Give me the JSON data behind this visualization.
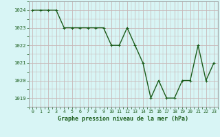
{
  "x": [
    0,
    1,
    2,
    3,
    4,
    5,
    6,
    7,
    8,
    9,
    10,
    11,
    12,
    13,
    14,
    15,
    16,
    17,
    18,
    19,
    20,
    21,
    22,
    23
  ],
  "y": [
    1024,
    1024,
    1024,
    1024,
    1023,
    1023,
    1023,
    1023,
    1023,
    1023,
    1022,
    1022,
    1023,
    1022,
    1021,
    1019,
    1020,
    1019,
    1019,
    1020,
    1020,
    1022,
    1020,
    1021
  ],
  "line_color": "#1a5c1a",
  "marker": "+",
  "marker_size": 3.5,
  "bg_color": "#d8f5f5",
  "grid_minor_color": "#c8b8b8",
  "grid_major_color": "#c8b8b8",
  "xlabel": "Graphe pression niveau de la mer (hPa)",
  "xlabel_color": "#1a5c1a",
  "tick_color": "#1a5c1a",
  "ylim": [
    1018.5,
    1024.5
  ],
  "yticks": [
    1019,
    1020,
    1021,
    1022,
    1023,
    1024
  ],
  "xticks": [
    0,
    1,
    2,
    3,
    4,
    5,
    6,
    7,
    8,
    9,
    10,
    11,
    12,
    13,
    14,
    15,
    16,
    17,
    18,
    19,
    20,
    21,
    22,
    23
  ],
  "line_width": 1.0,
  "marker_linewidth": 0.8
}
